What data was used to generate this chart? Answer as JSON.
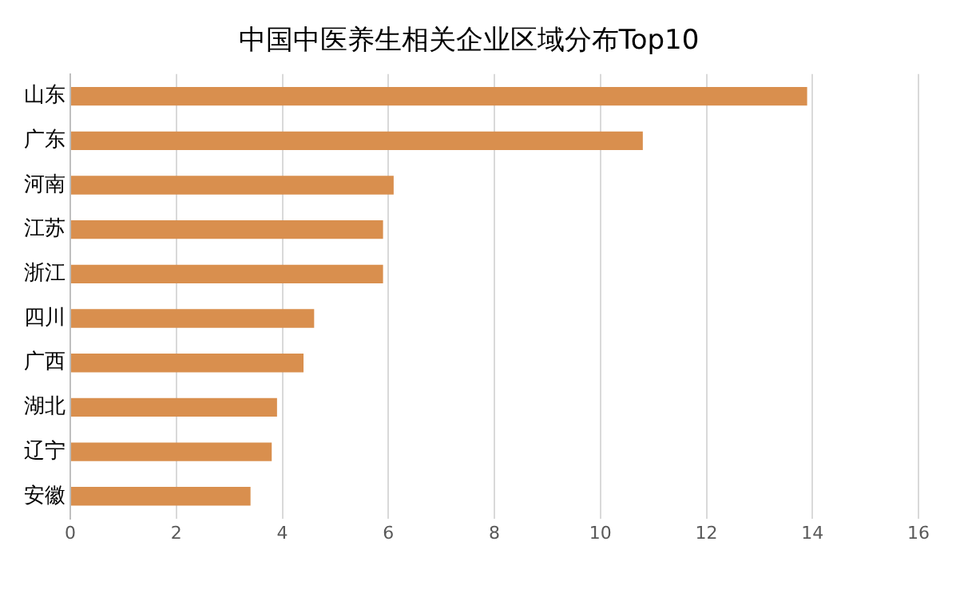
{
  "chart_data": {
    "type": "bar",
    "orientation": "horizontal",
    "title": "中国中医养生相关企业区域分布Top10",
    "categories": [
      "山东",
      "广东",
      "河南",
      "江苏",
      "浙江",
      "四川",
      "广西",
      "湖北",
      "辽宁",
      "安徽"
    ],
    "values": [
      13.9,
      10.8,
      6.1,
      5.9,
      5.9,
      4.6,
      4.4,
      3.9,
      3.8,
      3.4
    ],
    "color": "#d98f4e",
    "xlim": [
      0,
      16
    ],
    "xticks": [
      0,
      2,
      4,
      6,
      8,
      10,
      12,
      14,
      16
    ],
    "grid": "x",
    "legend": false
  }
}
